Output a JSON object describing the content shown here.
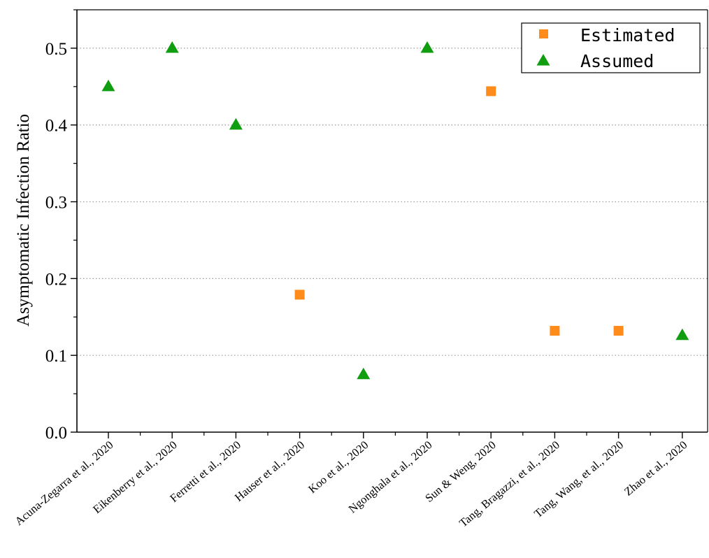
{
  "chart_data": {
    "type": "scatter",
    "title": "",
    "xlabel": "",
    "ylabel": "Asymptomatic Infection Ratio",
    "ylim": [
      0,
      0.55
    ],
    "yticks": [
      "0.0",
      "0.1",
      "0.2",
      "0.3",
      "0.4",
      "0.5"
    ],
    "ytick_values": [
      0,
      0.1,
      0.2,
      0.3,
      0.4,
      0.5
    ],
    "grid": "horizontal dotted",
    "legend_position": "top-right",
    "categories": [
      "Acuna-Zegarra et al., 2020",
      "Eikenberry et al., 2020",
      "Ferretti et al., 2020",
      "Hauser et al., 2020",
      "Koo et al., 2020",
      "Ngonghala et al., 2020",
      "Sun & Weng, 2020",
      "Tang, Bragazzi, et al., 2020",
      "Tang, Wang, et al., 2020",
      "Zhao et al., 2020"
    ],
    "series": [
      {
        "name": "Estimated",
        "marker": "square",
        "color": "#FF8C1A",
        "values": [
          null,
          null,
          null,
          0.179,
          null,
          null,
          0.444,
          0.132,
          0.132,
          null
        ]
      },
      {
        "name": "Assumed",
        "marker": "triangle",
        "color": "#109E10",
        "values": [
          0.45,
          0.5,
          0.4,
          null,
          0.075,
          0.5,
          null,
          null,
          null,
          0.126
        ]
      }
    ]
  }
}
